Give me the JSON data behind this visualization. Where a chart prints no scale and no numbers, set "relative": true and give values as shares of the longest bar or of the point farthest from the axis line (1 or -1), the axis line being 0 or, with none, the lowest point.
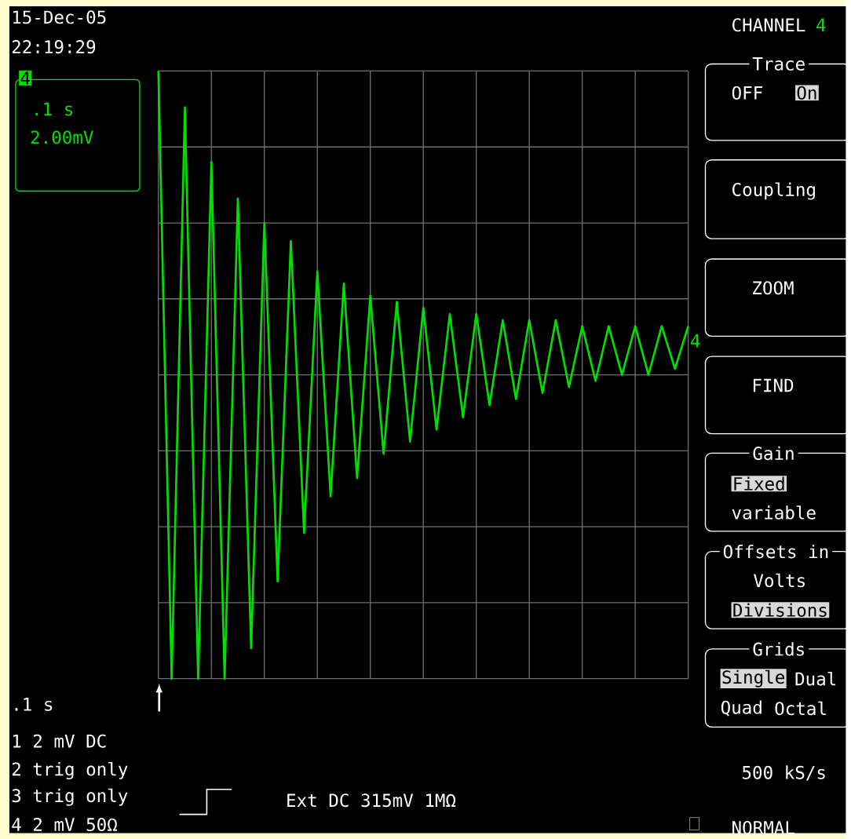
{
  "chart_data": {
    "type": "line",
    "relative": true,
    "grid": true,
    "categories": [
      null,
      null,
      null,
      null,
      null,
      null,
      null,
      null,
      null,
      null,
      null,
      null,
      null,
      null,
      null,
      null,
      null,
      null,
      null,
      null,
      null,
      null,
      null,
      null,
      null,
      null,
      null,
      null,
      null,
      null,
      null,
      null,
      null,
      null,
      null,
      null,
      null,
      null,
      null,
      null,
      null
    ],
    "series": [
      {
        "color": "#00e000",
        "values": [
          1.0,
          0,
          0.94,
          0,
          0.85,
          0,
          0.79,
          0.05,
          0.75,
          0.16,
          0.72,
          0.24,
          0.67,
          0.3,
          0.65,
          0.33,
          0.63,
          0.37,
          0.62,
          0.39,
          0.61,
          0.41,
          0.6,
          0.43,
          0.6,
          0.45,
          0.59,
          0.46,
          0.59,
          0.47,
          0.59,
          0.48,
          0.58,
          0.49,
          0.58,
          0.5,
          0.58,
          0.5,
          0.58,
          0.51,
          0.58
        ]
      }
    ],
    "annotations": [
      "15-Dec-05",
      "22:19:29",
      ".1 s",
      "2.00mV",
      "CHANNEL",
      "4",
      "Trace",
      "OFF",
      "On",
      "Coupling",
      "ZOOM",
      "FIND",
      "Gain",
      "Fixed",
      "variable",
      "Offsets in",
      "Volts",
      "Divisions",
      "Grids",
      "Single",
      "Dual",
      "Quad",
      "Octal",
      "500 kS/s",
      "NORMAL",
      ".1 s",
      "1 2 mV DC",
      "2 trig only",
      "3 trig only",
      "4 2 mV 50Ω",
      "Ext DC 315mV 1MΩ",
      "4",
      "4"
    ]
  }
}
